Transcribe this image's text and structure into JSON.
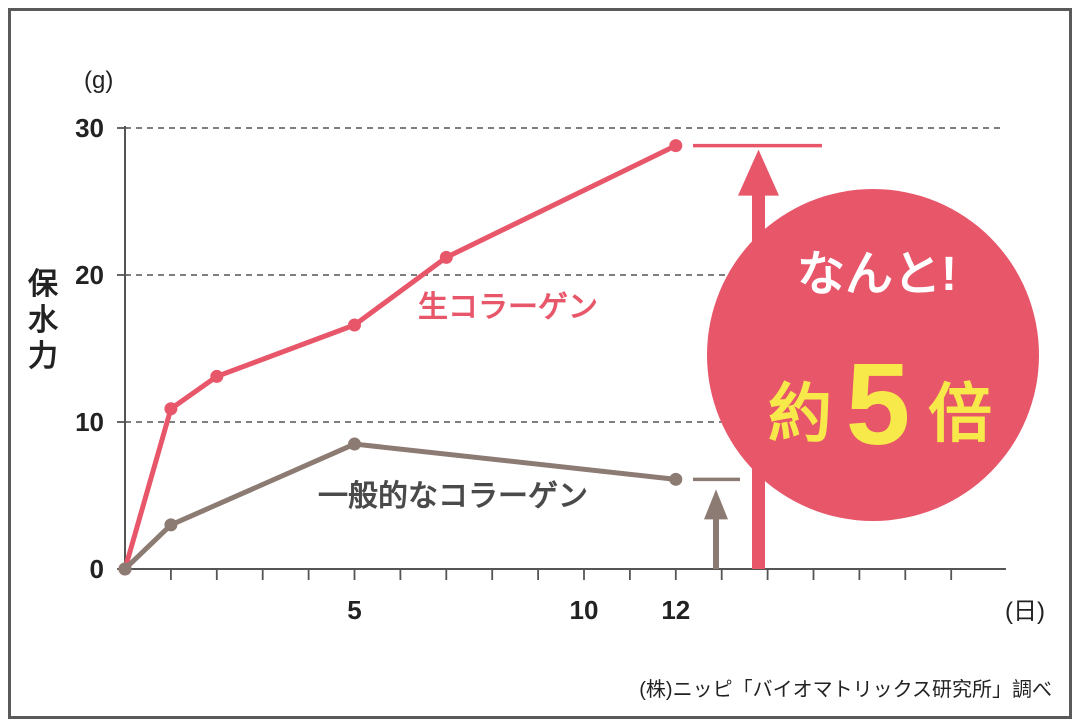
{
  "chart_data": {
    "type": "line",
    "y_unit": "(g)",
    "x_unit": "(日)",
    "ylabel": "保水力",
    "ylim": [
      0,
      30
    ],
    "xlim": [
      0,
      19
    ],
    "yticks": [
      "0",
      "10",
      "20",
      "30"
    ],
    "xtick_labels": [
      {
        "x": 5,
        "label": "5"
      },
      {
        "x": 10,
        "label": "10"
      },
      {
        "x": 12,
        "label": "12"
      }
    ],
    "minor_xticks": [
      1,
      2,
      3,
      4,
      5,
      6,
      7,
      8,
      9,
      10,
      11,
      12,
      13,
      14,
      15,
      16,
      17,
      18
    ],
    "grid": "horizontal dashed at 10, 20, 30",
    "series": [
      {
        "name": "生コラーゲン",
        "color": "#e8566a",
        "x": [
          0,
          1,
          2,
          5,
          7,
          12
        ],
        "y": [
          0,
          10.9,
          13.1,
          16.6,
          21.2,
          28.8
        ]
      },
      {
        "name": "一般的なコラーゲン",
        "color": "#8c7b72",
        "x": [
          0,
          1,
          5,
          12
        ],
        "y": [
          0,
          3.0,
          8.5,
          6.1
        ]
      }
    ],
    "callout": {
      "line1": "なんと!",
      "prefix": "約",
      "number": "5",
      "suffix": "倍",
      "circle_color": "#e8566a",
      "highlight_color": "#f7e94a"
    },
    "source": "(株)ニッピ「バイオマトリックス研究所」調べ"
  }
}
